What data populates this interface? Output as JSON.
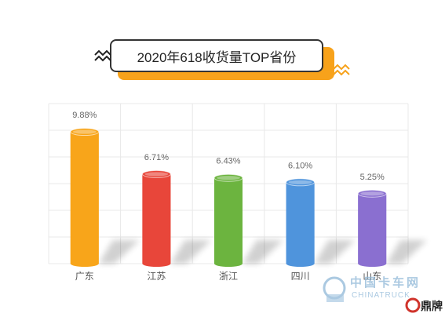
{
  "colors": {
    "accent": "#f7a21b",
    "grid": "#e8e8e8",
    "value_text": "#666666",
    "cat_text": "#555555",
    "watermark": "#8fb8d8"
  },
  "watermark": {
    "brand_cn": "中国卡车网",
    "brand_en": "CHINATRUCK",
    "partner": "鼎牌"
  },
  "chart_data": {
    "type": "bar",
    "title": "2020年618收货量TOP省份",
    "categories": [
      "广东",
      "江苏",
      "浙江",
      "四川",
      "山东"
    ],
    "values": [
      9.88,
      6.71,
      6.43,
      6.1,
      5.25
    ],
    "value_labels": [
      "9.88%",
      "6.71%",
      "6.43%",
      "6.10%",
      "5.25%"
    ],
    "colors": [
      "#f8a51a",
      "#e8463a",
      "#6cb43f",
      "#4f94dc",
      "#8a6fd0"
    ],
    "ylim": [
      0,
      12
    ],
    "grid": true,
    "xlabel": "",
    "ylabel": ""
  }
}
